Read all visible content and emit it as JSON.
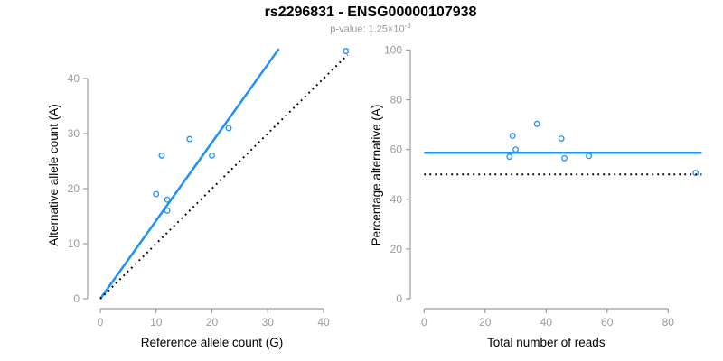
{
  "header": {
    "title": "rs2296831 - ENSG00000107938",
    "pvalue_prefix": "p-value: 1.25×10",
    "pvalue_exponent": "-3"
  },
  "colors": {
    "accent_blue": "#1E90FF",
    "identity_black": "#000000",
    "axis_gray": "#9c9c9c",
    "tick_label_gray": "#9c9c9c",
    "axis_title_black": "#000000"
  },
  "chart_data": [
    {
      "type": "scatter",
      "name": "allele-counts",
      "xlabel": "Reference allele count (G)",
      "ylabel": "Alternative allele count (A)",
      "xticks": [
        0,
        10,
        20,
        30,
        40
      ],
      "yticks": [
        0,
        10,
        20,
        30,
        40
      ],
      "xlim": [
        0,
        44
      ],
      "ylim": [
        0,
        45
      ],
      "grid": false,
      "legend": false,
      "points": [
        {
          "x": 10,
          "y": 19
        },
        {
          "x": 11,
          "y": 26
        },
        {
          "x": 12,
          "y": 16
        },
        {
          "x": 12,
          "y": 18
        },
        {
          "x": 16,
          "y": 29
        },
        {
          "x": 20,
          "y": 26
        },
        {
          "x": 23,
          "y": 31
        },
        {
          "x": 44,
          "y": 45
        }
      ],
      "lines": [
        {
          "name": "fitted-ratio-line",
          "style": "solid",
          "color_key": "accent_blue",
          "x1": 0,
          "y1": 0,
          "x2": 32,
          "y2": 45.4
        },
        {
          "name": "identity-line",
          "style": "dotted",
          "color_key": "identity_black",
          "x1": 0,
          "y1": 0,
          "x2": 44.3,
          "y2": 44.3
        }
      ]
    },
    {
      "type": "scatter",
      "name": "percentage-alternative",
      "xlabel": "Total number of reads",
      "ylabel": "Percentage alternative (A)",
      "xticks": [
        0,
        20,
        40,
        60,
        80
      ],
      "yticks": [
        0,
        20,
        40,
        60,
        80,
        100
      ],
      "xlim": [
        0,
        91
      ],
      "ylim": [
        0,
        100
      ],
      "grid": false,
      "legend": false,
      "points": [
        {
          "x": 28,
          "y": 57.1
        },
        {
          "x": 29,
          "y": 65.5
        },
        {
          "x": 30,
          "y": 60.0
        },
        {
          "x": 37,
          "y": 70.3
        },
        {
          "x": 45,
          "y": 64.4
        },
        {
          "x": 46,
          "y": 56.5
        },
        {
          "x": 54,
          "y": 57.4
        },
        {
          "x": 89,
          "y": 50.6
        }
      ],
      "lines": [
        {
          "name": "mean-percentage-line",
          "style": "solid",
          "color_key": "accent_blue",
          "x1": 0,
          "y1": 58.7,
          "x2": 91,
          "y2": 58.7
        },
        {
          "name": "null-50-percent-line",
          "style": "dotted",
          "color_key": "identity_black",
          "x1": 0,
          "y1": 50,
          "x2": 91,
          "y2": 50
        }
      ]
    }
  ]
}
